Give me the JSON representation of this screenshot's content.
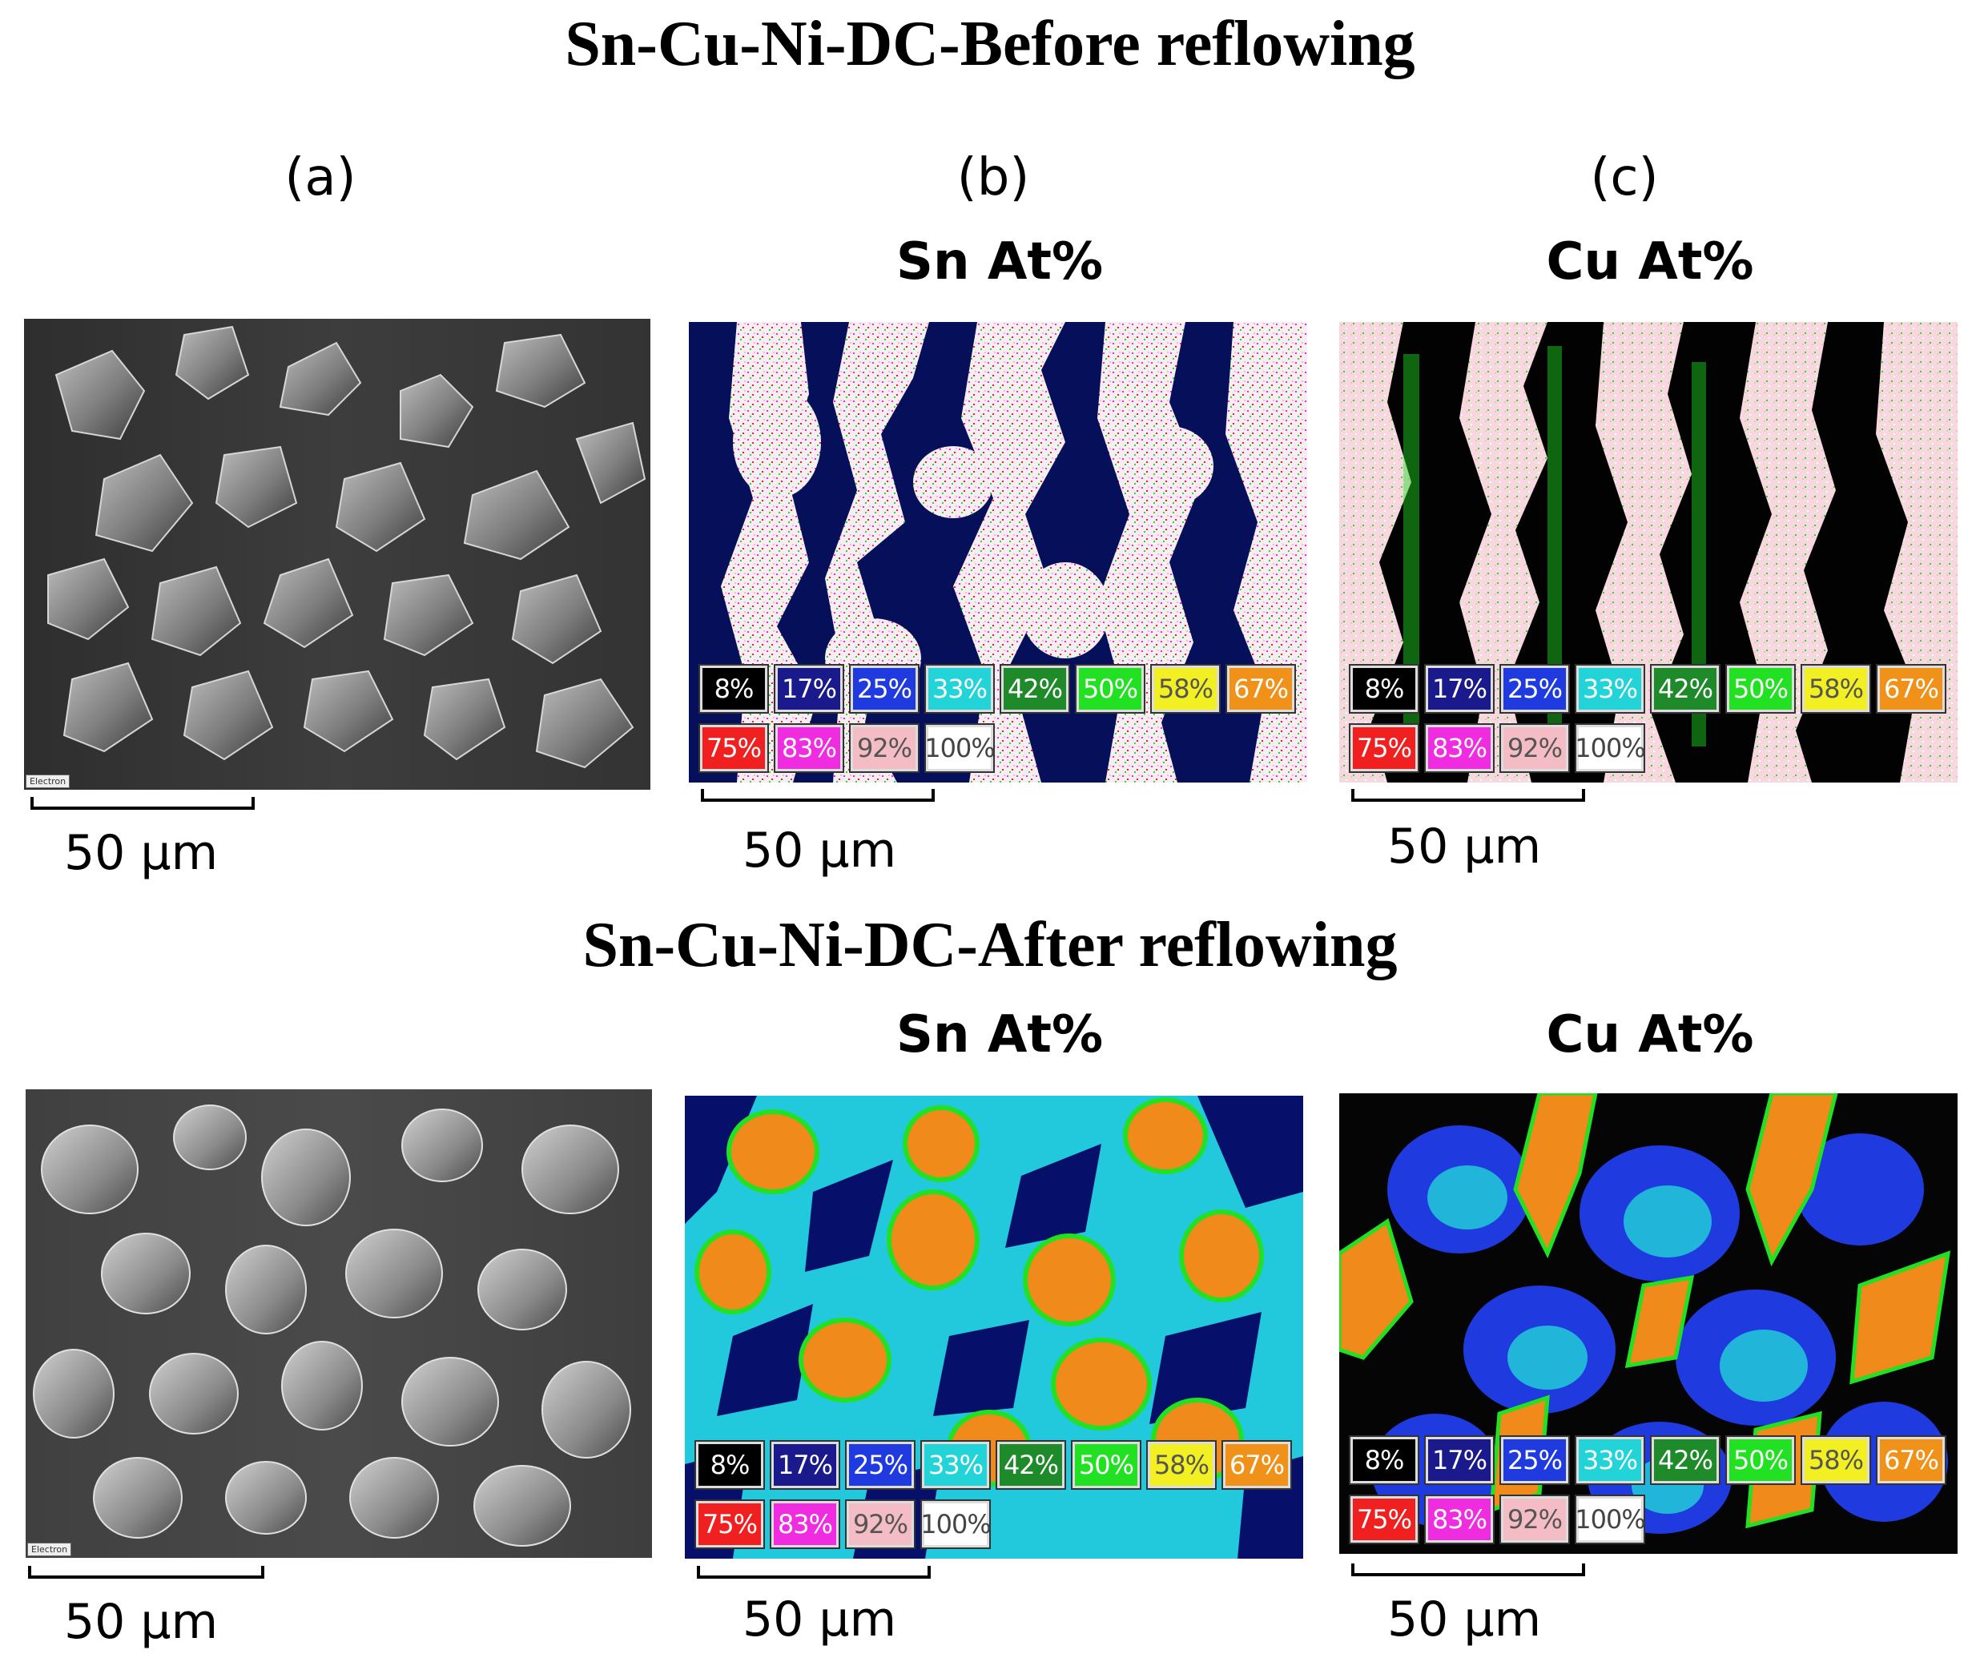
{
  "figure": {
    "title_before": "Sn-Cu-Ni-DC-Before reflowing",
    "title_after": "Sn-Cu-Ni-DC-After reflowing",
    "label_a": "(a)",
    "label_b": "(b)",
    "label_c": "(c)",
    "sn_map_title": "Sn At%",
    "cu_map_title": "Cu At%",
    "scale_bar_text": "50 µm",
    "sem_tag": "Electron",
    "legend": [
      {
        "label": "8%",
        "color": "#000000",
        "text": "#ffffff"
      },
      {
        "label": "17%",
        "color": "#1a1a8c",
        "text": "#ffffff"
      },
      {
        "label": "25%",
        "color": "#1f3be0",
        "text": "#ffffff"
      },
      {
        "label": "33%",
        "color": "#22d4d8",
        "text": "#ffffff"
      },
      {
        "label": "42%",
        "color": "#1f8a2a",
        "text": "#ffffff"
      },
      {
        "label": "50%",
        "color": "#22e022",
        "text": "#ffffff"
      },
      {
        "label": "58%",
        "color": "#f2ef22",
        "text": "#555555"
      },
      {
        "label": "67%",
        "color": "#f0921a",
        "text": "#ffffff"
      },
      {
        "label": "75%",
        "color": "#f02020",
        "text": "#ffffff"
      },
      {
        "label": "83%",
        "color": "#ef2ce0",
        "text": "#ffffff"
      },
      {
        "label": "92%",
        "color": "#f4bcc4",
        "text": "#555555"
      },
      {
        "label": "100%",
        "color": "#ffffff",
        "text": "#444444"
      }
    ]
  }
}
